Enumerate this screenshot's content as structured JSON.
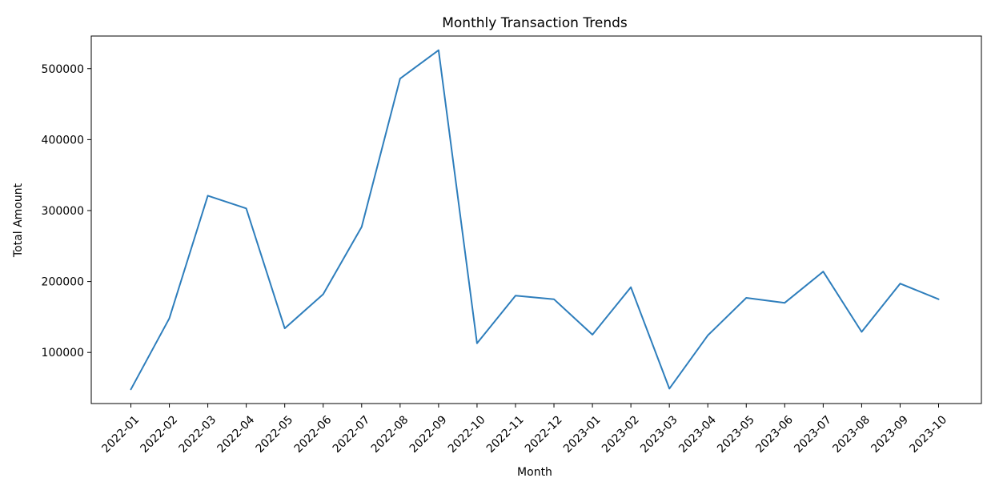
{
  "chart_data": {
    "type": "line",
    "title": "Monthly Transaction Trends",
    "xlabel": "Month",
    "ylabel": "Total Amount",
    "x": [
      "2022-01",
      "2022-02",
      "2022-03",
      "2022-04",
      "2022-05",
      "2022-06",
      "2022-07",
      "2022-08",
      "2022-09",
      "2022-10",
      "2022-11",
      "2022-12",
      "2023-01",
      "2023-02",
      "2023-03",
      "2023-04",
      "2023-05",
      "2023-06",
      "2023-07",
      "2023-08",
      "2023-09",
      "2023-10"
    ],
    "series": [
      {
        "values": [
          48000,
          148000,
          321000,
          303000,
          134000,
          182000,
          277000,
          486000,
          526000,
          113000,
          180000,
          175000,
          125000,
          192000,
          49000,
          124000,
          177000,
          170000,
          214000,
          129000,
          197000,
          175000
        ],
        "color": "#2e7ebc"
      }
    ],
    "yticks": [
      100000,
      200000,
      300000,
      400000,
      500000
    ],
    "ylim": [
      28000,
      546000
    ],
    "grid": false,
    "legend": false
  }
}
